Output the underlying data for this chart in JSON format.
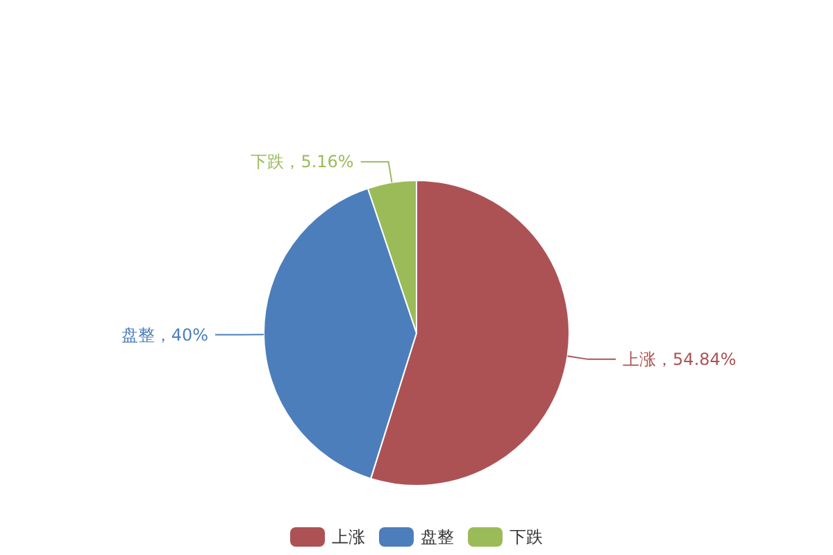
{
  "chart_data": {
    "type": "pie",
    "categories": [
      "上涨",
      "盘整",
      "下跌"
    ],
    "values": [
      54.84,
      40,
      5.16
    ],
    "colors": [
      "#ac5255",
      "#4c7ebb",
      "#9bbb59"
    ],
    "value_labels": [
      "上涨，54.84%",
      "盘整，40%",
      "下跌，5.16%"
    ],
    "legend": "bottom"
  }
}
